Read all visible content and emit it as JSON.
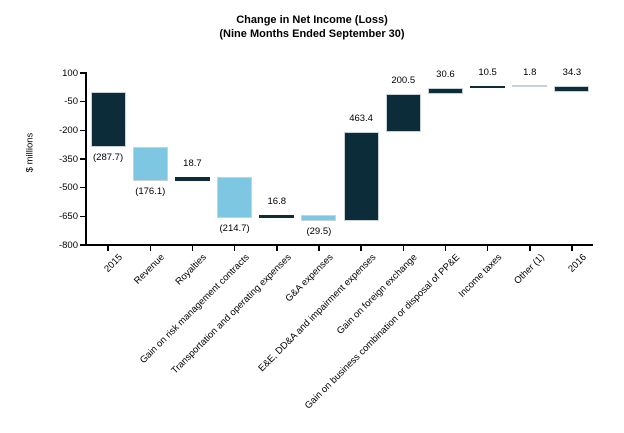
{
  "chart_data": {
    "type": "bar",
    "variant": "waterfall",
    "title": "Change in Net Income (Loss)",
    "subtitle": "(Nine Months Ended September 30)",
    "ylabel": "$ millions",
    "ylim": [
      -800,
      100
    ],
    "yticks": [
      100,
      -50,
      -200,
      -350,
      -500,
      -650,
      -800
    ],
    "grid": false,
    "legend_position": "none",
    "categories": [
      "2015",
      "Revenue",
      "Royalties",
      "Gain on risk management contracts",
      "Transportation and operating expenses",
      "G&A expenses",
      "E&E, DD&A and impairment expenses",
      "Gain on foreign exchange",
      "Gain on business combination or disposal of PP&E",
      "Income taxes",
      "Other (1)",
      "2016"
    ],
    "bars": [
      {
        "category": "2015",
        "value": -287.7,
        "label": "(287.7)",
        "start": 0,
        "end": -287.7,
        "color_key": "dark"
      },
      {
        "category": "Revenue",
        "value": -176.1,
        "label": "(176.1)",
        "start": -287.7,
        "end": -463.8,
        "color_key": "light_blue"
      },
      {
        "category": "Royalties",
        "value": 18.7,
        "label": "18.7",
        "start": -463.8,
        "end": -445.1,
        "color_key": "dark"
      },
      {
        "category": "Gain on risk management contracts",
        "value": -214.7,
        "label": "(214.7)",
        "start": -445.1,
        "end": -659.8,
        "color_key": "light_blue"
      },
      {
        "category": "Transportation and operating expenses",
        "value": 16.8,
        "label": "16.8",
        "start": -659.8,
        "end": -643.0,
        "color_key": "dark"
      },
      {
        "category": "G&A expenses",
        "value": -29.5,
        "label": "(29.5)",
        "start": -643.0,
        "end": -672.5,
        "color_key": "light_blue"
      },
      {
        "category": "E&E, DD&A and impairment expenses",
        "value": 463.4,
        "label": "463.4",
        "start": -672.5,
        "end": -209.1,
        "color_key": "dark"
      },
      {
        "category": "Gain on foreign exchange",
        "value": 200.5,
        "label": "200.5",
        "start": -209.1,
        "end": -8.6,
        "color_key": "dark"
      },
      {
        "category": "Gain on business combination or disposal of PP&E",
        "value": 30.6,
        "label": "30.6",
        "start": -8.6,
        "end": 22.0,
        "color_key": "dark"
      },
      {
        "category": "Income taxes",
        "value": 10.5,
        "label": "10.5",
        "start": 22.0,
        "end": 32.5,
        "color_key": "dark"
      },
      {
        "category": "Other (1)",
        "value": 1.8,
        "label": "1.8",
        "start": 32.5,
        "end": 34.3,
        "color_key": "dark"
      },
      {
        "category": "2016",
        "value": 34.3,
        "label": "34.3",
        "start": 0,
        "end": 34.3,
        "color_key": "dark"
      }
    ],
    "colors": {
      "dark": "#0d2c3a",
      "light_blue": "#7dc7e3",
      "bar_border": "#c8d1d5",
      "axis": "#000000",
      "text": "#000000",
      "background": "#ffffff"
    }
  }
}
